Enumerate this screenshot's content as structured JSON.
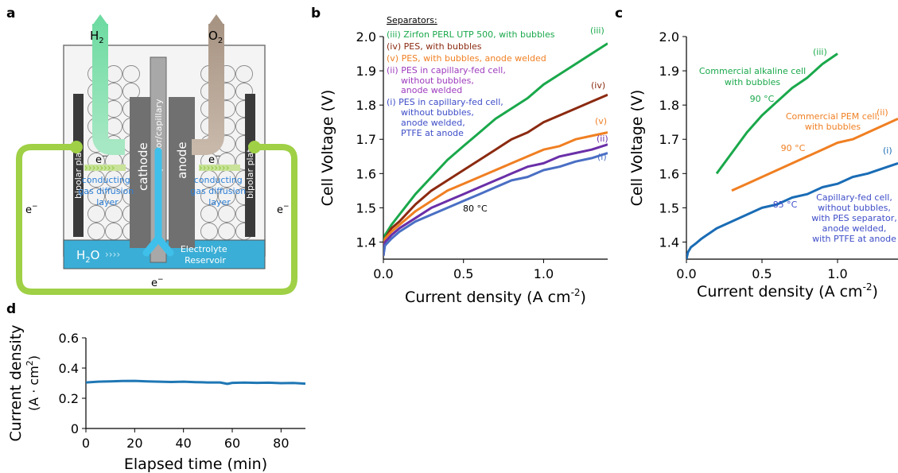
{
  "panel_labels": [
    "a",
    "b",
    "c",
    "d"
  ],
  "diagram": {
    "h2": "H",
    "h2_sub": "2",
    "o2": "O",
    "o2_sub": "2",
    "bipolar_plate": "bipolar plate",
    "cathode": "cathode",
    "anode": "anode",
    "separator": "separator/capillary",
    "electron": "e",
    "electron_sup": "−",
    "conducting_layer": [
      "conducting",
      "gas diffusion",
      "layer"
    ],
    "water": "H",
    "water_sub": "2",
    "water_o": "O",
    "reservoir": [
      "Electrolyte",
      "Reservoir"
    ],
    "colors": {
      "green": "#8cc63f",
      "blue": "#39a9d2",
      "h2": "#7ed6a6",
      "o2": "#b8a99a",
      "dark": "#606060"
    }
  },
  "chart_data": [
    {
      "id": "b",
      "type": "line",
      "xlabel": "Current density (A cm",
      "xlabel_sup": "-2",
      "xlabel_end": ")",
      "ylabel": "Cell Voltage (V)",
      "xlim": [
        0,
        1.4
      ],
      "ylim": [
        1.35,
        2.0
      ],
      "xticks": [
        "0.0",
        "0.5",
        "1.0"
      ],
      "xtick_values": [
        0,
        0.5,
        1.0
      ],
      "yticks": [
        "1.4",
        "1.5",
        "1.6",
        "1.7",
        "1.8",
        "1.9",
        "2.0"
      ],
      "ytick_values": [
        1.4,
        1.5,
        1.6,
        1.7,
        1.8,
        1.9,
        2.0
      ],
      "legend_title": "Separators:",
      "legend": [
        {
          "text": "(iii) Zirfon PERL UTP 500, with bubbles",
          "color": "#1aa84b"
        },
        {
          "text": "(iv) PES, with bubbles",
          "color": "#8b2a10"
        },
        {
          "text": "(v) PES, with bubbles, anode welded",
          "color": "#f07f22"
        },
        {
          "text": "(ii) PES in capillary-fed cell,",
          "color": "#9d3bbd"
        },
        {
          "text": "without bubbles,",
          "color": "#9d3bbd"
        },
        {
          "text": "anode welded",
          "color": "#9d3bbd"
        },
        {
          "text": "(i) PES in capillary-fed cell,",
          "color": "#3e4dc8"
        },
        {
          "text": "without bubbles,",
          "color": "#3e4dc8"
        },
        {
          "text": "anode welded,",
          "color": "#3e4dc8"
        },
        {
          "text": "PTFE at anode",
          "color": "#3e4dc8"
        }
      ],
      "temperature": "80 °C",
      "series": [
        {
          "name": "(iii)",
          "color": "#1aa84b",
          "x": [
            0,
            0.01,
            0.05,
            0.1,
            0.2,
            0.3,
            0.4,
            0.5,
            0.6,
            0.7,
            0.8,
            0.9,
            1.0,
            1.1,
            1.2,
            1.3,
            1.4
          ],
          "y": [
            1.36,
            1.42,
            1.45,
            1.48,
            1.54,
            1.59,
            1.64,
            1.68,
            1.72,
            1.76,
            1.79,
            1.82,
            1.86,
            1.89,
            1.92,
            1.95,
            1.98
          ]
        },
        {
          "name": "(iv)",
          "color": "#8b2a10",
          "x": [
            0,
            0.01,
            0.05,
            0.1,
            0.2,
            0.3,
            0.4,
            0.5,
            0.6,
            0.7,
            0.8,
            0.9,
            1.0,
            1.1,
            1.2,
            1.3,
            1.4
          ],
          "y": [
            1.36,
            1.41,
            1.44,
            1.46,
            1.51,
            1.55,
            1.58,
            1.61,
            1.64,
            1.67,
            1.7,
            1.72,
            1.75,
            1.77,
            1.79,
            1.81,
            1.83
          ]
        },
        {
          "name": "(v)",
          "color": "#f07f22",
          "x": [
            0,
            0.01,
            0.05,
            0.1,
            0.2,
            0.3,
            0.4,
            0.5,
            0.6,
            0.7,
            0.8,
            0.9,
            1.0,
            1.1,
            1.2,
            1.3,
            1.4
          ],
          "y": [
            1.36,
            1.41,
            1.43,
            1.45,
            1.49,
            1.52,
            1.55,
            1.57,
            1.59,
            1.61,
            1.63,
            1.65,
            1.67,
            1.68,
            1.7,
            1.71,
            1.72
          ]
        },
        {
          "name": "(ii)",
          "color": "#6a2fa8",
          "x": [
            0,
            0.01,
            0.05,
            0.1,
            0.2,
            0.3,
            0.4,
            0.5,
            0.6,
            0.7,
            0.8,
            0.9,
            1.0,
            1.1,
            1.2,
            1.3,
            1.4
          ],
          "y": [
            1.36,
            1.4,
            1.42,
            1.44,
            1.47,
            1.5,
            1.52,
            1.54,
            1.56,
            1.58,
            1.6,
            1.62,
            1.63,
            1.65,
            1.66,
            1.67,
            1.685
          ]
        },
        {
          "name": "(i)",
          "color": "#4a6fc4",
          "x": [
            0,
            0.01,
            0.05,
            0.1,
            0.2,
            0.3,
            0.4,
            0.5,
            0.6,
            0.7,
            0.8,
            0.9,
            1.0,
            1.1,
            1.2,
            1.3,
            1.4
          ],
          "y": [
            1.36,
            1.39,
            1.41,
            1.43,
            1.46,
            1.48,
            1.5,
            1.52,
            1.54,
            1.56,
            1.58,
            1.59,
            1.61,
            1.62,
            1.635,
            1.645,
            1.66
          ]
        }
      ]
    },
    {
      "id": "c",
      "type": "line",
      "xlabel": "Current density (A cm",
      "xlabel_sup": "-2",
      "xlabel_end": ")",
      "ylabel": "Cell Voltage (V)",
      "xlim": [
        0,
        1.4
      ],
      "ylim": [
        1.35,
        2.0
      ],
      "xticks": [
        "0.0",
        "0.5",
        "1.0"
      ],
      "xtick_values": [
        0,
        0.5,
        1.0
      ],
      "yticks": [
        "1.4",
        "1.5",
        "1.6",
        "1.7",
        "1.8",
        "1.9",
        "2.0"
      ],
      "ytick_values": [
        1.4,
        1.5,
        1.6,
        1.7,
        1.8,
        1.9,
        2.0
      ],
      "annotations": [
        {
          "lines": [
            "Commercial alkaline cell",
            "with bubbles"
          ],
          "color": "#1aa84b"
        },
        {
          "lines": [
            "90 °C"
          ],
          "color": "#1aa84b"
        },
        {
          "lines": [
            "Commercial PEM cell,",
            "with bubbles"
          ],
          "color": "#f07f22"
        },
        {
          "lines": [
            "90 °C"
          ],
          "color": "#f07f22"
        },
        {
          "lines": [
            "Capillary-fed cell,",
            "without bubbles,",
            "with PES separator,",
            "anode welded,",
            "with PTFE at anode"
          ],
          "color": "#3e4dc8"
        },
        {
          "lines": [
            "85 °C"
          ],
          "color": "#3e4dc8"
        }
      ],
      "series": [
        {
          "name": "(iii)",
          "color": "#1aa84b",
          "x": [
            0.2,
            0.3,
            0.4,
            0.5,
            0.6,
            0.7,
            0.8,
            0.9,
            1.0
          ],
          "y": [
            1.6,
            1.66,
            1.72,
            1.77,
            1.81,
            1.85,
            1.88,
            1.92,
            1.95
          ]
        },
        {
          "name": "(ii)",
          "color": "#f07f22",
          "x": [
            0.3,
            0.4,
            0.5,
            0.6,
            0.7,
            0.8,
            0.9,
            1.0,
            1.1,
            1.2,
            1.3,
            1.4
          ],
          "y": [
            1.55,
            1.57,
            1.59,
            1.61,
            1.63,
            1.65,
            1.67,
            1.69,
            1.7,
            1.72,
            1.74,
            1.76
          ]
        },
        {
          "name": "(i)",
          "color": "#1a6cb5",
          "x": [
            0.0,
            0.01,
            0.03,
            0.06,
            0.1,
            0.2,
            0.3,
            0.4,
            0.5,
            0.6,
            0.7,
            0.8,
            0.9,
            1.0,
            1.1,
            1.2,
            1.3,
            1.4
          ],
          "y": [
            1.35,
            1.37,
            1.385,
            1.395,
            1.41,
            1.44,
            1.46,
            1.48,
            1.5,
            1.51,
            1.53,
            1.54,
            1.56,
            1.57,
            1.59,
            1.6,
            1.615,
            1.63
          ]
        }
      ]
    },
    {
      "id": "d",
      "type": "line",
      "xlabel": "Elapsed time (min)",
      "ylabel": "Current density",
      "ylabel2": "(A · cm",
      "ylabel2_sup": "2",
      "ylabel2_end": ")",
      "xlim": [
        0,
        90
      ],
      "ylim": [
        0,
        0.6
      ],
      "xticks": [
        "0",
        "20",
        "40",
        "60",
        "80"
      ],
      "xtick_values": [
        0,
        20,
        40,
        60,
        80
      ],
      "yticks": [
        "0",
        "0.2",
        "0.4",
        "0.6"
      ],
      "ytick_values": [
        0,
        0.2,
        0.4,
        0.6
      ],
      "series": [
        {
          "name": "",
          "color": "#1f77b4",
          "x": [
            0,
            5,
            10,
            15,
            20,
            25,
            30,
            35,
            40,
            45,
            50,
            55,
            58,
            60,
            65,
            70,
            75,
            80,
            85,
            90
          ],
          "y": [
            0.305,
            0.31,
            0.312,
            0.314,
            0.315,
            0.312,
            0.31,
            0.308,
            0.31,
            0.307,
            0.305,
            0.305,
            0.295,
            0.302,
            0.304,
            0.302,
            0.303,
            0.3,
            0.301,
            0.297
          ]
        }
      ]
    }
  ]
}
